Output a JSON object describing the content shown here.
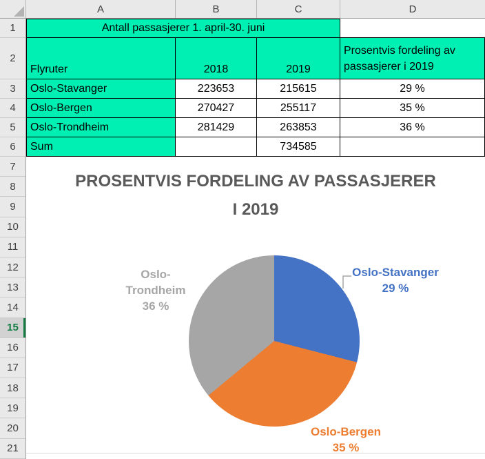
{
  "colors": {
    "teal": "#00F0B4",
    "blue": "#4472C4",
    "orange": "#ED7D31",
    "gray": "#A6A6A6",
    "title_gray": "#595959",
    "green": "#107C41"
  },
  "spreadsheet": {
    "column_headers": [
      "A",
      "B",
      "C",
      "D"
    ],
    "row_count": 21,
    "active_row": 15,
    "table": {
      "title": "Antall passasjerer 1. april-30. juni",
      "headers": {
        "a": "Flyruter",
        "b": "2018",
        "c": "2019",
        "d": "Prosentvis fordeling av passasjerer i 2019"
      },
      "rows": [
        {
          "route": "Oslo-Stavanger",
          "y2018": "223653",
          "y2019": "215615",
          "pct": "29 %"
        },
        {
          "route": "Oslo-Bergen",
          "y2018": "270427",
          "y2019": "255117",
          "pct": "35 %"
        },
        {
          "route": "Oslo-Trondheim",
          "y2018": "281429",
          "y2019": "263853",
          "pct": "36 %"
        },
        {
          "route": "Sum",
          "y2018": "",
          "y2019": "734585",
          "pct": ""
        }
      ]
    }
  },
  "chart": {
    "title_line1": "PROSENTVIS FORDELING AV PASSASJERER",
    "title_line2": "I 2019",
    "labels": {
      "trondheim": {
        "name": "Oslo-Trondheim",
        "pct": "36 %"
      },
      "stavanger": {
        "name": "Oslo-Stavanger",
        "pct": "29 %"
      },
      "bergen": {
        "name": "Oslo-Bergen",
        "pct": "35 %"
      }
    }
  },
  "chart_data": {
    "type": "pie",
    "title": "PROSENTVIS FORDELING AV PASSASJERER I 2019",
    "labels": [
      "Oslo-Stavanger",
      "Oslo-Bergen",
      "Oslo-Trondheim"
    ],
    "values": [
      29,
      35,
      36
    ],
    "colors": [
      "#4472C4",
      "#ED7D31",
      "#A6A6A6"
    ],
    "start_angle_deg": 0,
    "direction": "clockwise",
    "legend": "none",
    "data_labels": "category-name-and-percent"
  }
}
